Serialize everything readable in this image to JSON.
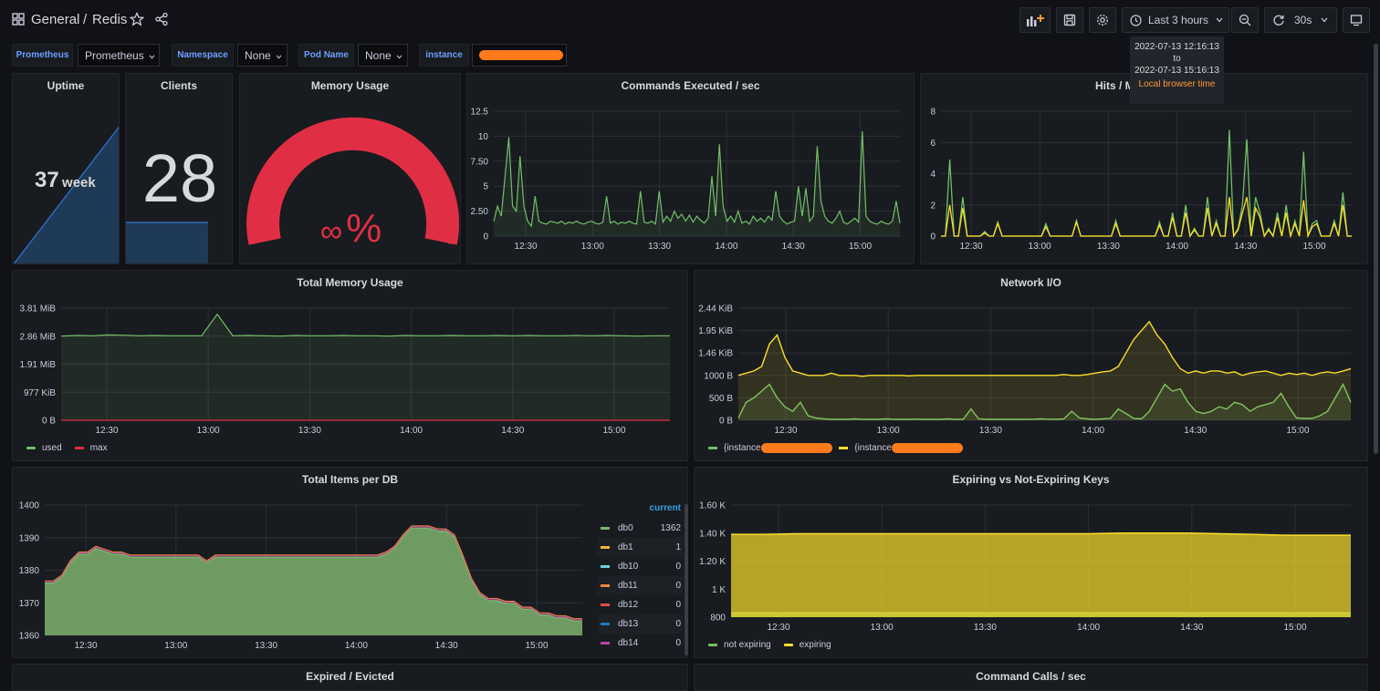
{
  "header": {
    "folder": "General",
    "separator": "/",
    "title": "Redis",
    "time_range": "Last 3 hours",
    "refresh": "30s",
    "icons": [
      "dashboard-grid-icon",
      "star-icon",
      "share-icon",
      "add-panel-icon",
      "save-icon",
      "settings-icon",
      "clock-icon",
      "zoom-out-icon",
      "refresh-icon",
      "tv-mode-icon"
    ]
  },
  "time_tooltip": {
    "from": "2022-07-13 12:16:13",
    "to_word": "to",
    "to": "2022-07-13 15:16:13",
    "note": "Local browser time"
  },
  "variables": [
    {
      "label": "Prometheus",
      "value": "Prometheus"
    },
    {
      "label": "Namespace",
      "value": "None"
    },
    {
      "label": "Pod Name",
      "value": "None"
    },
    {
      "label": "instance",
      "value": ""
    }
  ],
  "panels": {
    "uptime": {
      "title": "Uptime",
      "value": "37",
      "unit": "week"
    },
    "clients": {
      "title": "Clients",
      "value": "28"
    },
    "memory_usage": {
      "title": "Memory Usage",
      "value": "∞",
      "unit": "%",
      "colors": {
        "fill": "#e02f44",
        "ok": "#37872d",
        "warn": "#ff9830"
      }
    },
    "commands": {
      "title": "Commands Executed / sec"
    },
    "hits": {
      "title": "Hits / M"
    },
    "total_memory": {
      "title": "Total Memory Usage"
    },
    "network": {
      "title": "Network I/O"
    },
    "items_db": {
      "title": "Total Items per DB",
      "legend_header": "current"
    },
    "expiring": {
      "title": "Expiring vs Not-Expiring Keys"
    },
    "expired": {
      "title": "Expired / Evicted"
    },
    "command_calls": {
      "title": "Command Calls / sec"
    }
  },
  "chart_data": [
    {
      "id": "commands",
      "type": "line",
      "title": "Commands Executed / sec",
      "x_ticks": [
        "12:30",
        "13:00",
        "13:30",
        "14:00",
        "14:30",
        "15:00"
      ],
      "y_ticks": [
        "0",
        "2.50",
        "5",
        "7.50",
        "10",
        "12.5"
      ],
      "ylim": [
        0,
        12.5
      ],
      "series": [
        {
          "values": [
            1.5,
            3,
            2,
            6,
            9.9,
            3,
            2.5,
            8,
            3,
            1.5,
            1,
            4,
            1.5,
            1.3,
            1.2,
            1.5,
            1.4,
            1.3,
            1.5,
            1.2,
            1.4,
            1.3,
            1.5,
            1.3,
            1.2,
            1.4,
            1.5,
            1.3,
            1.2,
            1.4,
            4,
            1.3,
            1.5,
            1.2,
            1.4,
            1.3,
            1.5,
            1.3,
            1.2,
            4.5,
            1.4,
            1.3,
            1.5,
            1.2,
            4.5,
            1.4,
            2,
            1.5,
            2.5,
            1.8,
            2.2,
            1.5,
            2.1,
            1.4,
            2,
            1.6,
            1.3,
            1.8,
            6,
            2,
            9.2,
            3,
            1.5,
            2,
            1.4,
            2.5,
            1.3,
            1.5,
            1.2,
            2,
            1.5,
            1.8,
            1.4,
            2,
            1.6,
            4.5,
            2,
            1.5,
            1.2,
            1.4,
            1.5,
            5,
            2,
            4.8,
            1.5,
            2,
            9,
            3.5,
            2,
            1.5,
            1.3,
            1.8,
            2.5,
            1.4,
            1.2,
            1.5,
            1.8,
            1.4,
            10.5,
            2,
            1.5,
            1.3,
            1.2,
            1.5,
            1.3,
            1.2,
            1.5,
            3.5,
            1.3
          ]
        }
      ]
    },
    {
      "id": "hits",
      "type": "line",
      "title": "Hits / M",
      "x_ticks": [
        "12:30",
        "13:00",
        "13:30",
        "14:00",
        "14:30",
        "15:00"
      ],
      "y_ticks": [
        "0",
        "2",
        "4",
        "6",
        "8"
      ],
      "ylim": [
        0,
        8
      ],
      "series": [
        {
          "color": "#73bf69",
          "values": [
            0,
            0,
            4.9,
            0,
            0,
            2.5,
            0,
            0,
            0,
            0,
            0.3,
            0,
            0,
            0.9,
            0,
            0,
            0,
            0,
            0,
            0,
            0,
            0,
            0,
            0,
            0.8,
            0,
            0,
            0,
            0,
            0,
            0,
            1,
            0,
            0,
            0,
            0,
            0,
            0,
            0,
            0,
            1,
            0,
            0,
            0,
            0,
            0,
            0,
            0,
            0,
            0,
            0.9,
            0,
            0,
            1.5,
            0,
            0,
            2,
            0,
            0.5,
            0,
            0,
            2.5,
            0,
            1,
            0,
            0,
            6.8,
            0,
            0.5,
            2,
            6.2,
            0,
            2.5,
            1.5,
            0,
            0.5,
            0,
            1.5,
            0,
            2,
            0,
            1,
            0,
            5.4,
            0,
            0.8,
            1,
            0,
            0,
            0,
            1,
            0,
            2.8,
            0,
            0
          ]
        },
        {
          "color": "#fade2a",
          "values": [
            0,
            0,
            2,
            0,
            0,
            1.8,
            0,
            0,
            0,
            0,
            0.2,
            0,
            0,
            0.8,
            0,
            0,
            0,
            0,
            0,
            0,
            0,
            0,
            0,
            0,
            0.6,
            0,
            0,
            0,
            0,
            0,
            0,
            0.9,
            0,
            0,
            0,
            0,
            0,
            0,
            0,
            0,
            0.8,
            0,
            0,
            0,
            0,
            0,
            0,
            0,
            0,
            0,
            0.7,
            0,
            0,
            1.2,
            0,
            0,
            1.5,
            0,
            0.4,
            0,
            0,
            1.8,
            0,
            0.8,
            0,
            0,
            2.5,
            0,
            0.4,
            1.5,
            2.5,
            0,
            1.8,
            1.2,
            0,
            0.4,
            0,
            1.2,
            0,
            1.5,
            0,
            0.8,
            0,
            2.3,
            0,
            0.6,
            0.8,
            0,
            0,
            0,
            0.8,
            0,
            2,
            0,
            0
          ]
        }
      ]
    },
    {
      "id": "total_memory",
      "type": "line",
      "title": "Total Memory Usage",
      "x_ticks": [
        "12:30",
        "13:00",
        "13:30",
        "14:00",
        "14:30",
        "15:00"
      ],
      "y_ticks": [
        "0 B",
        "977 KiB",
        "1.91 MiB",
        "2.86 MiB",
        "3.81 MiB"
      ],
      "ylim": [
        0,
        3.81
      ],
      "series": [
        {
          "name": "used",
          "color": "#73bf69",
          "values": [
            2.86,
            2.88,
            2.87,
            2.9,
            2.89,
            2.87,
            2.88,
            2.87,
            2.87,
            2.87,
            3.6,
            2.87,
            2.88,
            2.87,
            2.86,
            2.88,
            2.87,
            2.87,
            2.88,
            2.87,
            2.87,
            2.86,
            2.88,
            2.87,
            2.87,
            2.88,
            2.87,
            2.87,
            2.88,
            2.87,
            2.88,
            2.87,
            2.87,
            2.88,
            2.87,
            2.88,
            2.87,
            2.86,
            2.87,
            2.87
          ]
        },
        {
          "name": "max",
          "color": "#e02f44",
          "values": [
            0,
            0,
            0,
            0,
            0,
            0,
            0,
            0,
            0,
            0,
            0,
            0,
            0,
            0,
            0,
            0,
            0,
            0,
            0,
            0,
            0,
            0,
            0,
            0,
            0,
            0,
            0,
            0,
            0,
            0,
            0,
            0,
            0,
            0,
            0,
            0,
            0,
            0,
            0,
            0
          ]
        }
      ]
    },
    {
      "id": "network",
      "type": "line",
      "title": "Network I/O",
      "x_ticks": [
        "12:30",
        "13:00",
        "13:30",
        "14:00",
        "14:30",
        "15:00"
      ],
      "y_ticks": [
        "0 B",
        "500 B",
        "1000 B",
        "1.46 KiB",
        "1.95 KiB",
        "2.44 KiB"
      ],
      "ylim": [
        0,
        2500
      ],
      "series": [
        {
          "name": "{instance=\"\", job=\"Redis\"}",
          "color": "#73bf69",
          "values": [
            50,
            400,
            500,
            650,
            800,
            500,
            300,
            200,
            400,
            100,
            50,
            30,
            20,
            20,
            20,
            30,
            20,
            20,
            20,
            30,
            20,
            20,
            20,
            25,
            20,
            20,
            20,
            30,
            20,
            20,
            250,
            30,
            20,
            20,
            20,
            20,
            20,
            20,
            25,
            30,
            25,
            20,
            30,
            200,
            50,
            30,
            20,
            30,
            40,
            250,
            150,
            40,
            30,
            200,
            500,
            800,
            650,
            700,
            400,
            200,
            150,
            200,
            300,
            250,
            400,
            350,
            200,
            300,
            350,
            400,
            600,
            300,
            50,
            40,
            40,
            100,
            200,
            500,
            800,
            400
          ]
        },
        {
          "name": "{instance=\"\", job=\"Redis\"}",
          "color": "#fade2a",
          "values": [
            1000,
            1050,
            1100,
            1200,
            1700,
            1900,
            1400,
            1100,
            1050,
            1000,
            1000,
            1000,
            1050,
            1000,
            1000,
            1000,
            980,
            1000,
            1000,
            1000,
            1000,
            1000,
            990,
            1000,
            1000,
            1000,
            1000,
            1000,
            1000,
            1000,
            1000,
            1000,
            1000,
            1000,
            1000,
            1000,
            1000,
            1000,
            1000,
            1000,
            1000,
            1000,
            1020,
            1000,
            1000,
            1020,
            1050,
            1080,
            1100,
            1200,
            1500,
            1800,
            2000,
            2200,
            1900,
            1700,
            1400,
            1150,
            1050,
            1100,
            1050,
            1100,
            1100,
            1050,
            1080,
            1000,
            1050,
            1080,
            1100,
            1050,
            1000,
            1050,
            1020,
            1050,
            1000,
            1050,
            1080,
            1050,
            1100,
            1150
          ]
        }
      ]
    },
    {
      "id": "items_db",
      "type": "area",
      "title": "Total Items per DB",
      "x_ticks": [
        "12:30",
        "13:00",
        "13:30",
        "14:00",
        "14:30",
        "15:00"
      ],
      "y_ticks": [
        "1360",
        "1370",
        "1380",
        "1390",
        "1400"
      ],
      "ylim": [
        1358,
        1403
      ],
      "series": [
        {
          "name": "db0",
          "color": "#7eb26d",
          "current": "1362",
          "values": [
            1376,
            1376,
            1378,
            1383,
            1386,
            1386,
            1388,
            1387,
            1386,
            1386,
            1385,
            1385,
            1385,
            1385,
            1385,
            1385,
            1385,
            1385,
            1385,
            1383,
            1385,
            1385,
            1385,
            1385,
            1385,
            1385,
            1385,
            1385,
            1385,
            1385,
            1385,
            1385,
            1385,
            1385,
            1385,
            1385,
            1385,
            1385,
            1385,
            1385,
            1386,
            1388,
            1392,
            1395,
            1395,
            1395,
            1394,
            1394,
            1392,
            1385,
            1377,
            1372,
            1370,
            1370,
            1369,
            1369,
            1367,
            1367,
            1365,
            1365,
            1364,
            1364,
            1363,
            1363
          ]
        },
        {
          "name": "db1",
          "color": "#eab839",
          "current": "1"
        },
        {
          "name": "db10",
          "color": "#6ed0e0",
          "current": "0"
        },
        {
          "name": "db11",
          "color": "#ef843c",
          "current": "0"
        },
        {
          "name": "db12",
          "color": "#e24d42",
          "current": "0"
        },
        {
          "name": "db13",
          "color": "#1f78c1",
          "current": "0"
        },
        {
          "name": "db14",
          "color": "#ba43a9",
          "current": "0"
        }
      ]
    },
    {
      "id": "expiring",
      "type": "area",
      "title": "Expiring vs Not-Expiring Keys",
      "x_ticks": [
        "12:30",
        "13:00",
        "13:30",
        "14:00",
        "14:30",
        "15:00"
      ],
      "y_ticks": [
        "800",
        "1 K",
        "1.20 K",
        "1.40 K",
        "1.60 K"
      ],
      "ylim": [
        800,
        1600
      ],
      "series": [
        {
          "name": "not expiring",
          "color": "#73bf69",
          "values": [
            830,
            830,
            830,
            830,
            830,
            830,
            830,
            830,
            830,
            830,
            830,
            830,
            830,
            830,
            830,
            830,
            830,
            830,
            830,
            830
          ]
        },
        {
          "name": "expiring",
          "color": "#fade2a",
          "values": [
            1390,
            1390,
            1395,
            1395,
            1395,
            1395,
            1395,
            1395,
            1395,
            1395,
            1395,
            1395,
            1400,
            1400,
            1400,
            1395,
            1390,
            1385,
            1385,
            1385
          ]
        }
      ]
    }
  ]
}
